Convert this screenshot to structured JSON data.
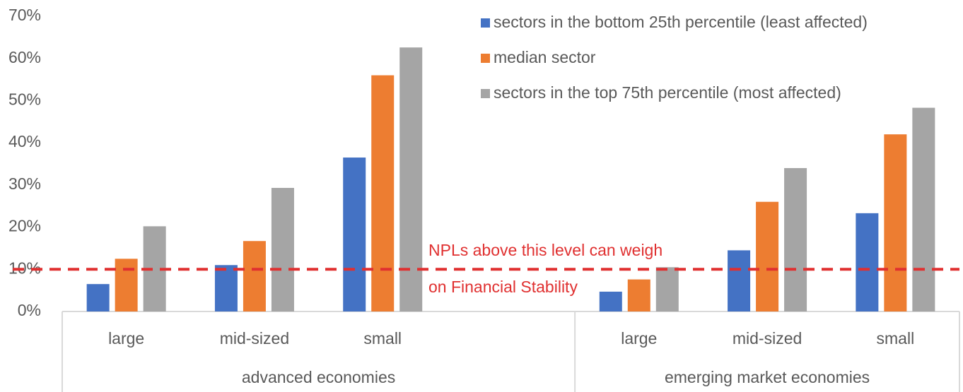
{
  "chart_data": {
    "type": "bar",
    "categories": [
      "large",
      "mid-sized",
      "small",
      null,
      "large",
      "mid-sized",
      "small"
    ],
    "groups": [
      {
        "label": "advanced economies",
        "span": [
          0,
          3
        ]
      },
      {
        "label": "emerging market economies",
        "span": [
          4,
          6
        ]
      }
    ],
    "series": [
      {
        "name": "sectors in the bottom 25th percentile (least affected)",
        "color": "#4472c4",
        "values": [
          6.5,
          11,
          36.5,
          null,
          4.7,
          14.5,
          23.3
        ]
      },
      {
        "name": "median sector",
        "color": "#ed7d31",
        "values": [
          12.5,
          16.7,
          56,
          null,
          7.6,
          26,
          42
        ]
      },
      {
        "name": "sectors in the top 75th percentile (most affected)",
        "color": "#a5a5a5",
        "values": [
          20.2,
          29.3,
          62.6,
          null,
          10.5,
          34,
          48.3
        ]
      }
    ],
    "ylim": [
      0,
      70
    ],
    "yticks": [
      {
        "value": 0,
        "label": "0%"
      },
      {
        "value": 10,
        "label": "10%"
      },
      {
        "value": 20,
        "label": "20%"
      },
      {
        "value": 30,
        "label": "30%"
      },
      {
        "value": 40,
        "label": "40%"
      },
      {
        "value": 50,
        "label": "50%"
      },
      {
        "value": 60,
        "label": "60%"
      },
      {
        "value": 70,
        "label": "70%"
      }
    ],
    "grid": false,
    "legend": "top-right",
    "reference_line": {
      "value": 10,
      "color": "#e03030"
    },
    "annotations": [
      "NPLs above this level can weigh",
      "on Financial Stability"
    ]
  }
}
